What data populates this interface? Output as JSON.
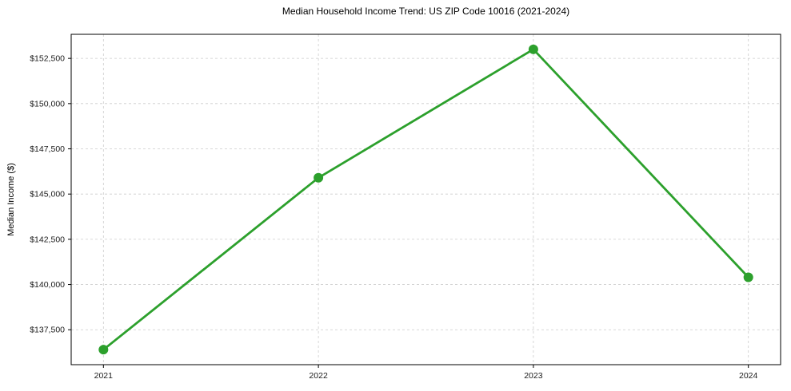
{
  "chart_data": {
    "type": "line",
    "title": "Median Household Income Trend: US ZIP Code 10016 (2021-2024)",
    "xlabel": "",
    "ylabel": "Median Income ($)",
    "x": [
      2021,
      2022,
      2023,
      2024
    ],
    "x_tick_labels": [
      "2021",
      "2022",
      "2023",
      "2024"
    ],
    "series": [
      {
        "name": "Median Household Income",
        "values": [
          136400,
          145900,
          153000,
          140400
        ],
        "color": "#2ca02c",
        "marker": "circle"
      }
    ],
    "y_ticks": [
      {
        "value": 137500,
        "label": "$137,500"
      },
      {
        "value": 140000,
        "label": "$140,000"
      },
      {
        "value": 142500,
        "label": "$142,500"
      },
      {
        "value": 145000,
        "label": "$145,000"
      },
      {
        "value": 147500,
        "label": "$147,500"
      },
      {
        "value": 150000,
        "label": "$150,000"
      },
      {
        "value": 152500,
        "label": "$152,500"
      }
    ],
    "xlim": [
      2020.85,
      2024.15
    ],
    "ylim": [
      135570,
      153830
    ],
    "grid": true,
    "grid_style": "dashed",
    "grid_color": "#cccccc",
    "background_color": "#ffffff",
    "legend_position": "none",
    "line_width": 2.8,
    "marker_size": 6
  }
}
